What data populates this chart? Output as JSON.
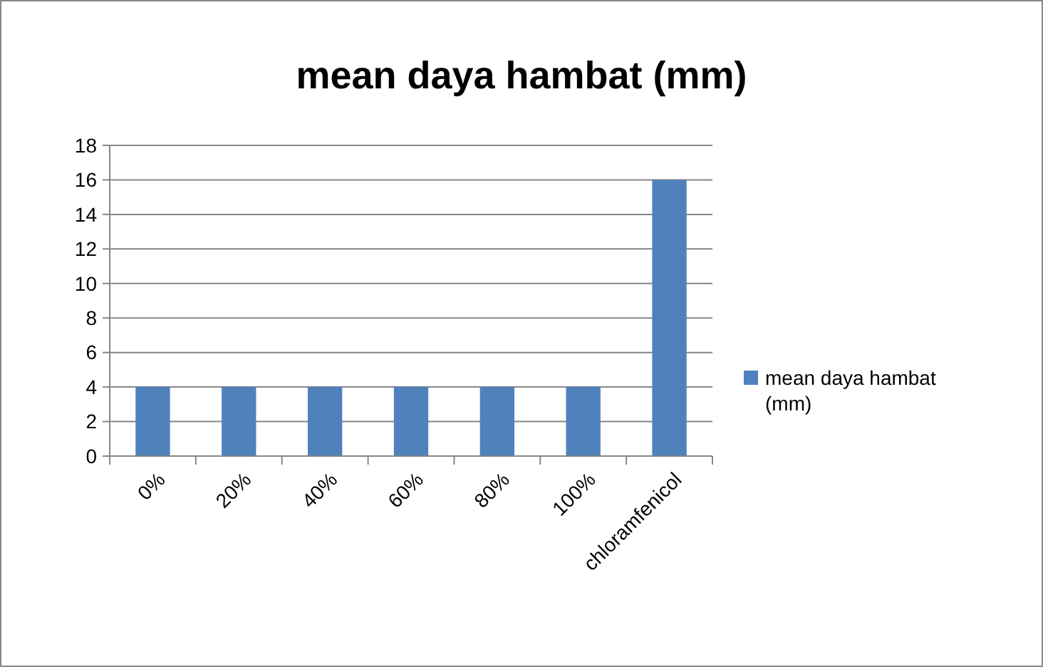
{
  "chart_data": {
    "type": "bar",
    "title": "mean daya hambat (mm)",
    "categories": [
      "0%",
      "20%",
      "40%",
      "60%",
      "80%",
      "100%",
      "chloramfenicol"
    ],
    "series": [
      {
        "name": "mean daya hambat (mm)",
        "color": "#4f81bd",
        "values": [
          4,
          4,
          4,
          4,
          4,
          4,
          16
        ]
      }
    ],
    "ylim": [
      0,
      18
    ],
    "yticks": [
      0,
      2,
      4,
      6,
      8,
      10,
      12,
      14,
      16,
      18
    ],
    "grid": "y",
    "legend": "right"
  }
}
